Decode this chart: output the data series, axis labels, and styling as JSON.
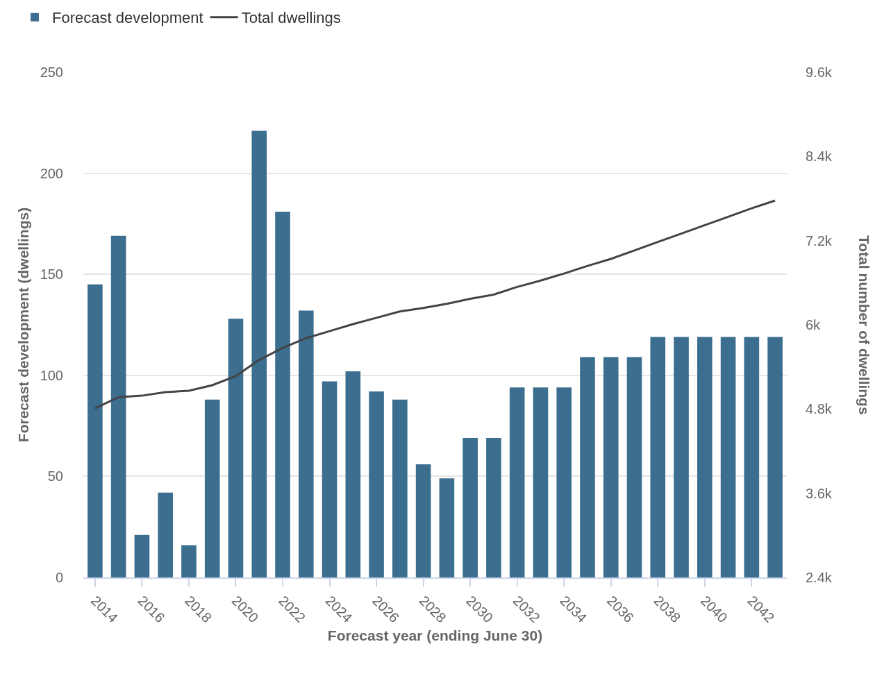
{
  "chart_data": {
    "type": "bar",
    "categories": [
      "2014",
      null,
      "2016",
      null,
      "2018",
      null,
      "2020",
      null,
      "2022",
      null,
      "2024",
      null,
      "2026",
      null,
      "2028",
      null,
      "2030",
      null,
      "2032",
      null,
      "2034",
      null,
      "2036",
      null,
      "2038",
      null,
      "2040",
      null,
      "2042",
      null
    ],
    "series": [
      {
        "name": "Forecast development",
        "color": "#3c6e8f",
        "values": [
          145,
          169,
          21,
          42,
          16,
          88,
          128,
          221,
          181,
          132,
          97,
          102,
          92,
          88,
          56,
          49,
          69,
          69,
          94,
          94,
          94,
          109,
          109,
          109,
          119,
          119,
          119,
          119,
          119,
          119
        ]
      },
      {
        "name": "Total dwellings",
        "type": "line",
        "axis": "y2",
        "color": "#434348",
        "values": [
          4810,
          4970,
          4990,
          5040,
          5060,
          5140,
          5270,
          5500,
          5670,
          5810,
          5910,
          6010,
          6100,
          6190,
          6240,
          6300,
          6370,
          6430,
          6540,
          6630,
          6730,
          6840,
          6940,
          7060,
          7180,
          7300,
          7420,
          7540,
          7660,
          7770
        ]
      }
    ],
    "xlabel": "Forecast year (ending June 30)",
    "ylabel": "Forecast development (dwellings)",
    "y2label": "Total number of dwellings",
    "ylim": [
      0,
      250
    ],
    "yticks": [
      0,
      50,
      100,
      150,
      200,
      250
    ],
    "y2lim": [
      2400,
      9600
    ],
    "y2ticks": [
      {
        "value": 2400,
        "label": "2.4k"
      },
      {
        "value": 3600,
        "label": "3.6k"
      },
      {
        "value": 4800,
        "label": "4.8k"
      },
      {
        "value": 6000,
        "label": "6k"
      },
      {
        "value": 7200,
        "label": "7.2k"
      },
      {
        "value": 8400,
        "label": "8.4k"
      },
      {
        "value": 9600,
        "label": "9.6k"
      }
    ],
    "grid": "y",
    "legend": "top left"
  }
}
